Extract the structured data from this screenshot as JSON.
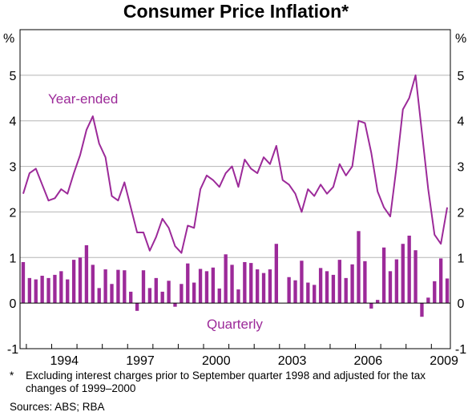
{
  "chart_data": {
    "type": "bar+line",
    "title": "Consumer Price Inflation*",
    "y_unit_left": "%",
    "y_unit_right": "%",
    "ylim": [
      -1,
      6
    ],
    "yticks": [
      -1,
      0,
      1,
      2,
      3,
      4,
      5
    ],
    "x_tick_labels": [
      "1994",
      "1997",
      "2000",
      "2003",
      "2006",
      "2009"
    ],
    "x_start": 1992.75,
    "x_end": 2009.75,
    "color": "#9c2a99",
    "series": [
      {
        "name": "Year-ended",
        "kind": "line",
        "values": [
          2.4,
          2.85,
          2.95,
          2.6,
          2.25,
          2.3,
          2.5,
          2.4,
          2.85,
          3.25,
          3.8,
          4.1,
          3.5,
          3.2,
          2.35,
          2.25,
          2.65,
          2.1,
          1.55,
          1.55,
          1.15,
          1.45,
          1.85,
          1.65,
          1.25,
          1.1,
          1.7,
          1.65,
          2.5,
          2.8,
          2.7,
          2.55,
          2.85,
          3.0,
          2.55,
          3.15,
          2.95,
          2.85,
          3.2,
          3.05,
          3.45,
          2.7,
          2.6,
          2.4,
          2.0,
          2.5,
          2.35,
          2.6,
          2.4,
          2.55,
          3.05,
          2.8,
          3.0,
          4.0,
          3.95,
          3.3,
          2.45,
          2.1,
          1.9,
          3.0,
          4.25,
          4.5,
          5.0,
          3.75,
          2.5,
          1.5,
          1.3,
          2.1
        ]
      },
      {
        "name": "Quarterly",
        "kind": "bar",
        "values": [
          0.9,
          0.55,
          0.52,
          0.6,
          0.55,
          0.62,
          0.7,
          0.52,
          0.95,
          1.0,
          1.27,
          0.84,
          0.33,
          0.74,
          0.42,
          0.73,
          0.72,
          0.25,
          -0.17,
          0.72,
          0.33,
          0.55,
          0.25,
          0.49,
          -0.08,
          0.42,
          0.87,
          0.45,
          0.75,
          0.7,
          0.78,
          0.32,
          1.07,
          0.84,
          0.3,
          0.9,
          0.88,
          0.74,
          0.66,
          0.74,
          1.3,
          0.0,
          0.57,
          0.5,
          0.93,
          0.45,
          0.4,
          0.77,
          0.7,
          0.62,
          0.95,
          0.55,
          0.85,
          1.58,
          0.92,
          -0.12,
          0.07,
          1.22,
          0.7,
          0.96,
          1.3,
          1.48,
          1.16,
          -0.3,
          0.12,
          0.48,
          0.98,
          0.54
        ]
      }
    ]
  },
  "footnote": {
    "marker": "*",
    "text": "Excluding interest charges prior to September quarter 1998 and adjusted for the tax changes of 1999–2000"
  },
  "sources": "Sources: ABS; RBA"
}
